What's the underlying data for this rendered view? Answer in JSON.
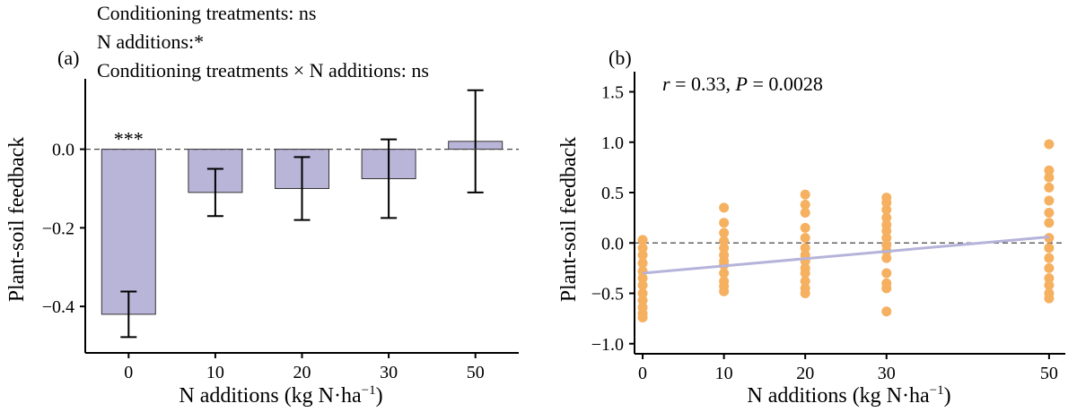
{
  "chart_data": [
    {
      "type": "bar",
      "panel_label": "(a)",
      "stats": [
        "Conditioning treatments: ns",
        "N additions:*",
        "Conditioning treatments × N additions: ns"
      ],
      "significance_label": "***",
      "categories": [
        "0",
        "10",
        "20",
        "30",
        "50"
      ],
      "values": [
        -0.42,
        -0.11,
        -0.1,
        -0.075,
        0.02
      ],
      "errors": [
        0.058,
        0.06,
        0.08,
        0.1,
        0.13
      ],
      "ylabel": "Plant-soil feedback",
      "xlabel_main": "N additions (kg N·ha",
      "xlabel_sup": "−1",
      "xlabel_tail": ")",
      "ylim": [
        -0.5,
        0.17
      ],
      "yticks": [
        -0.4,
        -0.2,
        0.0
      ],
      "ytick_labels": [
        "−0.4",
        "−0.2",
        "0.0"
      ],
      "reference_line_y": 0,
      "bar_color": "#b9b5d8",
      "bar_stroke": "#333333"
    },
    {
      "type": "scatter",
      "panel_label": "(b)",
      "annotation_r": "r",
      "annotation_r_value": " = 0.33, ",
      "annotation_p": "P",
      "annotation_p_value": " = 0.0028",
      "x_groups": [
        0,
        10,
        20,
        30,
        50
      ],
      "points": [
        {
          "x": 0,
          "y": 0.03
        },
        {
          "x": 0,
          "y": -0.05
        },
        {
          "x": 0,
          "y": -0.12
        },
        {
          "x": 0,
          "y": -0.2
        },
        {
          "x": 0,
          "y": -0.28
        },
        {
          "x": 0,
          "y": -0.35
        },
        {
          "x": 0,
          "y": -0.42
        },
        {
          "x": 0,
          "y": -0.5
        },
        {
          "x": 0,
          "y": -0.57
        },
        {
          "x": 0,
          "y": -0.64
        },
        {
          "x": 0,
          "y": -0.7
        },
        {
          "x": 0,
          "y": -0.74
        },
        {
          "x": 10,
          "y": 0.35
        },
        {
          "x": 10,
          "y": 0.2
        },
        {
          "x": 10,
          "y": 0.1
        },
        {
          "x": 10,
          "y": 0.02
        },
        {
          "x": 10,
          "y": -0.05
        },
        {
          "x": 10,
          "y": -0.12
        },
        {
          "x": 10,
          "y": -0.18
        },
        {
          "x": 10,
          "y": -0.22
        },
        {
          "x": 10,
          "y": -0.3
        },
        {
          "x": 10,
          "y": -0.38
        },
        {
          "x": 10,
          "y": -0.43
        },
        {
          "x": 10,
          "y": -0.48
        },
        {
          "x": 20,
          "y": 0.48
        },
        {
          "x": 20,
          "y": 0.38
        },
        {
          "x": 20,
          "y": 0.3
        },
        {
          "x": 20,
          "y": 0.15
        },
        {
          "x": 20,
          "y": 0.05
        },
        {
          "x": 20,
          "y": -0.05
        },
        {
          "x": 20,
          "y": -0.12
        },
        {
          "x": 20,
          "y": -0.18
        },
        {
          "x": 20,
          "y": -0.25
        },
        {
          "x": 20,
          "y": -0.3
        },
        {
          "x": 20,
          "y": -0.38
        },
        {
          "x": 20,
          "y": -0.45
        },
        {
          "x": 20,
          "y": -0.5
        },
        {
          "x": 30,
          "y": 0.45
        },
        {
          "x": 30,
          "y": 0.4
        },
        {
          "x": 30,
          "y": 0.33
        },
        {
          "x": 30,
          "y": 0.25
        },
        {
          "x": 30,
          "y": 0.18
        },
        {
          "x": 30,
          "y": 0.12
        },
        {
          "x": 30,
          "y": 0.05
        },
        {
          "x": 30,
          "y": -0.02
        },
        {
          "x": 30,
          "y": -0.08
        },
        {
          "x": 30,
          "y": -0.15
        },
        {
          "x": 30,
          "y": -0.3
        },
        {
          "x": 30,
          "y": -0.4
        },
        {
          "x": 30,
          "y": -0.45
        },
        {
          "x": 30,
          "y": -0.68
        },
        {
          "x": 50,
          "y": 0.98
        },
        {
          "x": 50,
          "y": 0.72
        },
        {
          "x": 50,
          "y": 0.65
        },
        {
          "x": 50,
          "y": 0.55
        },
        {
          "x": 50,
          "y": 0.42
        },
        {
          "x": 50,
          "y": 0.3
        },
        {
          "x": 50,
          "y": 0.2
        },
        {
          "x": 50,
          "y": 0.05
        },
        {
          "x": 50,
          "y": -0.05
        },
        {
          "x": 50,
          "y": -0.15
        },
        {
          "x": 50,
          "y": -0.25
        },
        {
          "x": 50,
          "y": -0.35
        },
        {
          "x": 50,
          "y": -0.42
        },
        {
          "x": 50,
          "y": -0.5
        },
        {
          "x": 50,
          "y": -0.55
        }
      ],
      "fit_line": {
        "x": [
          0,
          50
        ],
        "y": [
          -0.3,
          0.06
        ]
      },
      "ylabel": "Plant-soil feedback",
      "xlabel_main": "N additions (kg N·ha",
      "xlabel_sup": "−1",
      "xlabel_tail": ")",
      "xlim": [
        -1,
        52
      ],
      "ylim": [
        -1.1,
        1.7
      ],
      "xticks": [
        0,
        10,
        20,
        30,
        50
      ],
      "xtick_labels": [
        "0",
        "10",
        "20",
        "30",
        "50"
      ],
      "yticks": [
        -1.0,
        -0.5,
        0.0,
        0.5,
        1.0,
        1.5
      ],
      "ytick_labels": [
        "−1.0",
        "−0.5",
        "0.0",
        "0.5",
        "1.0",
        "1.5"
      ],
      "reference_line_y": 0,
      "point_color": "#f5b060",
      "line_color": "#b6b3da"
    }
  ]
}
